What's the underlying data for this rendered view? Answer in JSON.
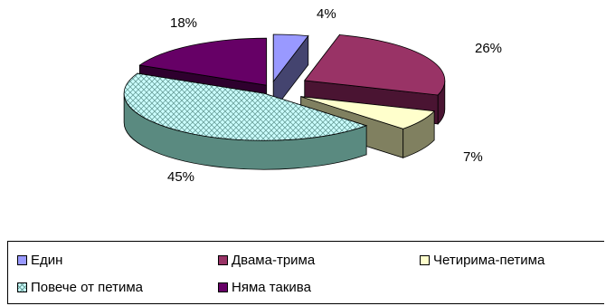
{
  "chart_data": {
    "type": "pie",
    "categories": [
      "Един",
      "Двама-трима",
      "Четирима-петима",
      "Повече от петима",
      "Няма такива"
    ],
    "values": [
      4,
      26,
      7,
      45,
      18
    ],
    "labels": [
      "4%",
      "26%",
      "7%",
      "45%",
      "18%"
    ],
    "colors": [
      "#9999ff",
      "#993366",
      "#ffffcc",
      "#ccffff",
      "#660066"
    ],
    "side_colors": [
      "#44446f",
      "#4a1432",
      "#808060",
      "#5a8a80",
      "#2e002e"
    ],
    "patterns": [
      "solid",
      "solid",
      "solid",
      "crosshatch",
      "solid"
    ],
    "legend_position": "bottom",
    "exploded": true,
    "style": "3d"
  },
  "legend": {
    "items": [
      {
        "label": "Един"
      },
      {
        "label": "Двама-трима"
      },
      {
        "label": "Четирима-петима"
      },
      {
        "label": "Повече от петима"
      },
      {
        "label": "Няма такива"
      }
    ]
  }
}
